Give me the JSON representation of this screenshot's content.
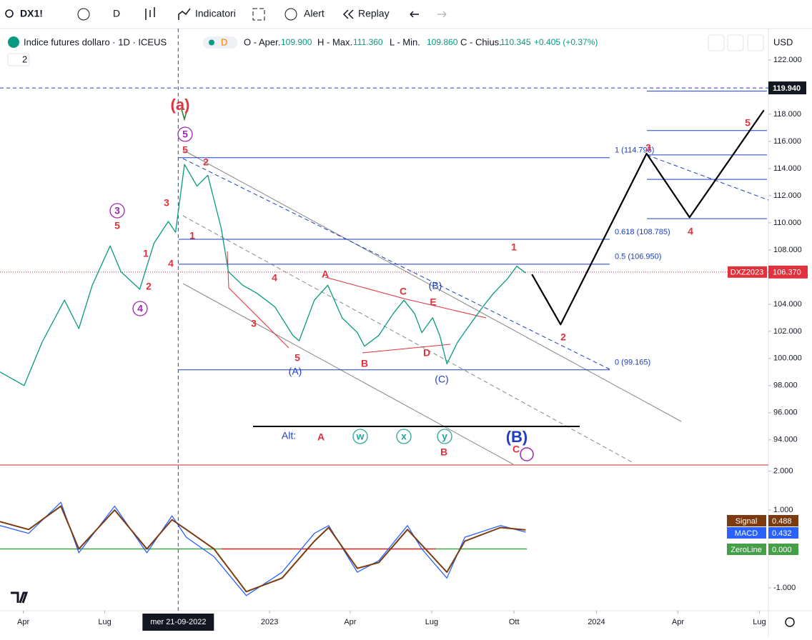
{
  "toolbar": {
    "symbol": "DX1!",
    "interval": "D",
    "indicators": "Indicatori",
    "alert": "Alert",
    "replay": "Replay"
  },
  "header": {
    "title": "Indice futures dollaro · 1D · ICEUS",
    "badge": "D",
    "open_label": "O - Aper.",
    "open": "109.900",
    "high_label": "H - Max.",
    "high": "111.360",
    "low_label": "L - Min.",
    "low": "109.860",
    "close_label": "C - Chius.",
    "close": "110.345",
    "change": "+0.405 (+0.37%)",
    "currency": "USD",
    "panes": "2"
  },
  "chart_data": [
    {
      "type": "line",
      "xlim": [
        "2022-03-06",
        "2024-07-11"
      ],
      "xticks": [
        {
          "value": "2022-04-01",
          "label": "Apr"
        },
        {
          "value": "2022-07-01",
          "label": "Lug"
        },
        {
          "value": "2023-01-01",
          "label": "2023"
        },
        {
          "value": "2023-04-01",
          "label": "Apr"
        },
        {
          "value": "2023-07-01",
          "label": "Lug"
        },
        {
          "value": "2023-10-01",
          "label": "Ott"
        },
        {
          "value": "2024-01-01",
          "label": "2024"
        },
        {
          "value": "2024-04-01",
          "label": "Apr"
        },
        {
          "value": "2024-07-01",
          "label": "Lug"
        }
      ],
      "ylim": [
        92.2,
        124.05
      ],
      "yticks": [
        {
          "value": 122,
          "label": "122.000"
        },
        {
          "value": 118,
          "label": "118.000"
        },
        {
          "value": 116,
          "label": "116.000"
        },
        {
          "value": 114,
          "label": "114.000"
        },
        {
          "value": 112,
          "label": "112.000"
        },
        {
          "value": 110,
          "label": "110.000"
        },
        {
          "value": 108,
          "label": "108.000"
        },
        {
          "value": 104,
          "label": "104.000"
        },
        {
          "value": 102,
          "label": "102.000"
        },
        {
          "value": 100,
          "label": "100.000"
        },
        {
          "value": 98,
          "label": "98.000"
        },
        {
          "value": 96,
          "label": "96.000"
        },
        {
          "value": 94,
          "label": "94.000"
        }
      ],
      "crosshair": {
        "value": "2022-09-21",
        "label": "mer 21-09-2022"
      },
      "series": [
        {
          "color": "#089981",
          "width": 1.3,
          "x": [
            "2022-03-06",
            "2022-04-02",
            "2022-04-22",
            "2022-05-17",
            "2022-06-02",
            "2022-06-17",
            "2022-07-07",
            "2022-07-19",
            "2022-08-09",
            "2022-08-25",
            "2022-09-10",
            "2022-09-18",
            "2022-09-28",
            "2022-10-12",
            "2022-10-24",
            "2022-11-08",
            "2022-11-16",
            "2022-12-02",
            "2022-12-18",
            "2023-01-07",
            "2023-01-27",
            "2023-02-03",
            "2023-02-20",
            "2023-03-07",
            "2023-03-23",
            "2023-04-09",
            "2023-04-17",
            "2023-05-03",
            "2023-05-19",
            "2023-05-31",
            "2023-06-12",
            "2023-06-20",
            "2023-07-02",
            "2023-07-10",
            "2023-07-18",
            "2023-07-30",
            "2023-08-15",
            "2023-08-27",
            "2023-09-08",
            "2023-09-24",
            "2023-10-04",
            "2023-10-14"
          ],
          "values": [
            99.0,
            98.0,
            101.2,
            104.3,
            102.2,
            105.4,
            108.3,
            106.4,
            105.1,
            108.5,
            110.1,
            109.3,
            114.3,
            112.7,
            113.5,
            109.6,
            106.4,
            105.4,
            104.8,
            103.8,
            101.7,
            101.3,
            104.3,
            105.4,
            103.0,
            101.9,
            100.9,
            101.7,
            103.3,
            104.3,
            103.3,
            101.9,
            103.0,
            101.7,
            99.6,
            101.2,
            102.7,
            103.8,
            104.8,
            105.9,
            106.8,
            106.3
          ]
        },
        {
          "color": "#000000",
          "width": 2.2,
          "x": [
            "2023-10-21",
            "2023-11-22",
            "2024-02-26",
            "2024-04-14",
            "2024-07-06"
          ],
          "values": [
            106.2,
            102.5,
            115.1,
            110.4,
            118.3
          ]
        }
      ],
      "levels": [
        {
          "value": 114.795,
          "label": "1 (114.795)"
        },
        {
          "value": 108.785,
          "label": "0.618 (108.785)"
        },
        {
          "value": 106.95,
          "label": "0.5 (106.950)"
        },
        {
          "value": 99.165,
          "label": "0 (99.165)"
        }
      ],
      "targets": [
        119.7,
        116.8,
        115.0,
        113.2,
        110.3
      ],
      "dashed_level": {
        "value": 119.94,
        "label": "119.940"
      },
      "last_price": {
        "name": "DXZ2023",
        "value": 106.37,
        "label": "106.370"
      },
      "annotations": [
        {
          "text": "(a)",
          "color": "#e0323c",
          "style": "big"
        },
        {
          "text": "5",
          "color": "#9c27b0",
          "style": "circle"
        },
        {
          "text": "5",
          "color": "#e0323c",
          "style": "plain"
        },
        {
          "text": "2",
          "color": "#e0323c",
          "style": "plain"
        },
        {
          "text": "1",
          "color": "#e0323c",
          "style": "plain"
        },
        {
          "text": "4",
          "color": "#e0323c",
          "style": "plain"
        },
        {
          "text": "3",
          "color": "#e0323c",
          "style": "plain"
        },
        {
          "text": "1",
          "color": "#e0323c",
          "style": "plain"
        },
        {
          "text": "2",
          "color": "#e0323c",
          "style": "plain"
        },
        {
          "text": "5",
          "color": "#e0323c",
          "style": "plain"
        },
        {
          "text": "3",
          "color": "#9c27b0",
          "style": "circle"
        },
        {
          "text": "4",
          "color": "#9c27b0",
          "style": "circle"
        },
        {
          "text": "4",
          "color": "#e0323c",
          "style": "plain"
        },
        {
          "text": "3",
          "color": "#e0323c",
          "style": "plain"
        },
        {
          "text": "5",
          "color": "#e0323c",
          "style": "plain"
        },
        {
          "text": "(A)",
          "color": "#1e3fbf",
          "style": "plain"
        },
        {
          "text": "A",
          "color": "#e0323c",
          "style": "plain"
        },
        {
          "text": "B",
          "color": "#e0323c",
          "style": "plain"
        },
        {
          "text": "C",
          "color": "#e0323c",
          "style": "plain"
        },
        {
          "text": "D",
          "color": "#e0323c",
          "style": "plain"
        },
        {
          "text": "E",
          "color": "#e0323c",
          "style": "plain"
        },
        {
          "text": "(B)",
          "color": "#1e3fbf",
          "style": "plain"
        },
        {
          "text": "(C)",
          "color": "#1e3fbf",
          "style": "plain"
        },
        {
          "text": "1",
          "color": "#e0323c",
          "style": "plain"
        },
        {
          "text": "2",
          "color": "#e0323c",
          "style": "plain"
        },
        {
          "text": "3",
          "color": "#e0323c",
          "style": "plain"
        },
        {
          "text": "4",
          "color": "#e0323c",
          "style": "plain"
        },
        {
          "text": "5",
          "color": "#e0323c",
          "style": "plain"
        },
        {
          "text": "Alt:",
          "color": "#1e3fbf",
          "style": "plain"
        },
        {
          "text": "A",
          "color": "#e0323c",
          "style": "plain"
        },
        {
          "text": "w",
          "color": "#26a69a",
          "style": "circle"
        },
        {
          "text": "x",
          "color": "#26a69a",
          "style": "circle"
        },
        {
          "text": "y",
          "color": "#26a69a",
          "style": "circle"
        },
        {
          "text": "B",
          "color": "#e0323c",
          "style": "plain"
        },
        {
          "text": "(B)",
          "color": "#1e3fbf",
          "style": "big"
        },
        {
          "text": "C",
          "color": "#e0323c",
          "style": "plain"
        }
      ]
    },
    {
      "type": "line",
      "xlim": [
        "2022-03-06",
        "2024-07-11"
      ],
      "ylim": [
        -1.59,
        2.14
      ],
      "yticks": [
        {
          "value": 2,
          "label": "2.000"
        },
        {
          "value": 1,
          "label": "1.000"
        },
        {
          "value": -1,
          "label": "-1.000"
        }
      ],
      "series": [
        {
          "name": "MACD",
          "color": "#2962ff",
          "width": 1.3,
          "x": [
            "2022-03-06",
            "2022-04-07",
            "2022-05-13",
            "2022-06-02",
            "2022-07-12",
            "2022-08-17",
            "2022-09-14",
            "2022-09-30",
            "2022-10-31",
            "2022-12-06",
            "2023-01-15",
            "2023-02-20",
            "2023-03-08",
            "2023-04-09",
            "2023-05-03",
            "2023-06-04",
            "2023-06-20",
            "2023-07-18",
            "2023-08-07",
            "2023-09-16",
            "2023-10-14"
          ],
          "values": [
            0.6,
            0.4,
            1.2,
            -0.1,
            1.1,
            -0.1,
            0.85,
            0.3,
            -0.2,
            -1.2,
            -0.6,
            0.4,
            0.6,
            -0.6,
            -0.3,
            0.6,
            0.0,
            -0.75,
            0.3,
            0.6,
            0.432
          ]
        },
        {
          "name": "Signal",
          "color": "#7b3a10",
          "width": 2,
          "x": [
            "2022-03-06",
            "2022-04-07",
            "2022-05-13",
            "2022-06-02",
            "2022-07-12",
            "2022-08-17",
            "2022-09-14",
            "2022-09-30",
            "2022-10-31",
            "2022-12-06",
            "2023-01-15",
            "2023-02-20",
            "2023-03-08",
            "2023-04-09",
            "2023-05-03",
            "2023-06-04",
            "2023-06-20",
            "2023-07-18",
            "2023-08-07",
            "2023-09-16",
            "2023-10-14"
          ],
          "values": [
            0.7,
            0.5,
            1.1,
            0.0,
            1.0,
            0.0,
            0.75,
            0.5,
            0.0,
            -1.1,
            -0.75,
            0.2,
            0.55,
            -0.5,
            -0.35,
            0.5,
            0.1,
            -0.6,
            0.2,
            0.55,
            0.488
          ]
        }
      ],
      "badges": [
        {
          "name": "Signal",
          "value": 0.488,
          "label": "0.488",
          "color": "#7b3a10"
        },
        {
          "name": "MACD",
          "value": 0.432,
          "label": "0.432",
          "color": "#2962ff"
        },
        {
          "name": "ZeroLine",
          "value": 0,
          "label": "0.000",
          "color": "#43a047"
        }
      ]
    }
  ]
}
